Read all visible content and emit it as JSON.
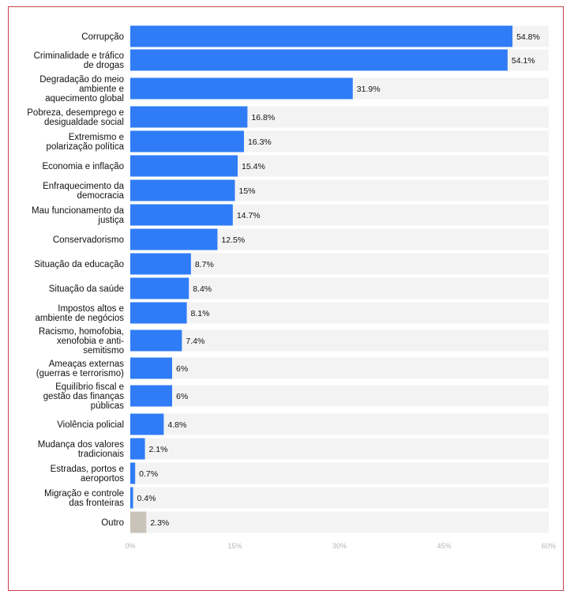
{
  "colors": {
    "bar": "#2f7cf6",
    "bar_other": "#c9c3ba",
    "track": "#f3f3f3",
    "frame": "#c8414b"
  },
  "chart_data": {
    "type": "bar",
    "orientation": "horizontal",
    "title": "",
    "xlabel": "",
    "ylabel": "",
    "xlim": [
      0,
      60
    ],
    "x_ticks": [
      "0%",
      "15%",
      "30%",
      "45%",
      "60%"
    ],
    "x_tick_values": [
      0,
      15,
      30,
      45,
      60
    ],
    "grid": false,
    "categories": [
      [
        "Corrupção"
      ],
      [
        "Criminalidade e tráfico",
        "de drogas"
      ],
      [
        "Degradação do meio",
        "ambiente e",
        "aquecimento global"
      ],
      [
        "Pobreza, desemprego e",
        "desigualdade social"
      ],
      [
        "Extremismo e",
        "polarização política"
      ],
      [
        "Economia e inflação"
      ],
      [
        "Enfraquecimento da",
        "democracia"
      ],
      [
        "Mau funcionamento da",
        "justiça"
      ],
      [
        "Conservadorismo"
      ],
      [
        "Situação da educação"
      ],
      [
        "Situação da saúde"
      ],
      [
        "Impostos altos e",
        "ambiente de negócios"
      ],
      [
        "Racismo, homofobia,",
        "xenofobia e anti-",
        "semitismo"
      ],
      [
        "Ameaças externas",
        "(guerras e terrorismo)"
      ],
      [
        "Equilíbrio fiscal e",
        "gestão das finanças",
        "públicas"
      ],
      [
        "Violência policial"
      ],
      [
        "Mudança dos valores",
        "tradicionais"
      ],
      [
        "Estradas, portos e",
        "aeroportos"
      ],
      [
        "Migração e controle",
        "das fronteiras"
      ],
      [
        "Outro"
      ]
    ],
    "values": [
      54.8,
      54.1,
      31.9,
      16.8,
      16.3,
      15.4,
      15,
      14.7,
      12.5,
      8.7,
      8.4,
      8.1,
      7.4,
      6,
      6,
      4.8,
      2.1,
      0.7,
      0.4,
      2.3
    ],
    "value_labels": [
      "54.8%",
      "54.1%",
      "31.9%",
      "16.8%",
      "16.3%",
      "15.4%",
      "15%",
      "14.7%",
      "12.5%",
      "8.7%",
      "8.4%",
      "8.1%",
      "7.4%",
      "6%",
      "6%",
      "4.8%",
      "2.1%",
      "0.7%",
      "0.4%",
      "2.3%"
    ]
  }
}
